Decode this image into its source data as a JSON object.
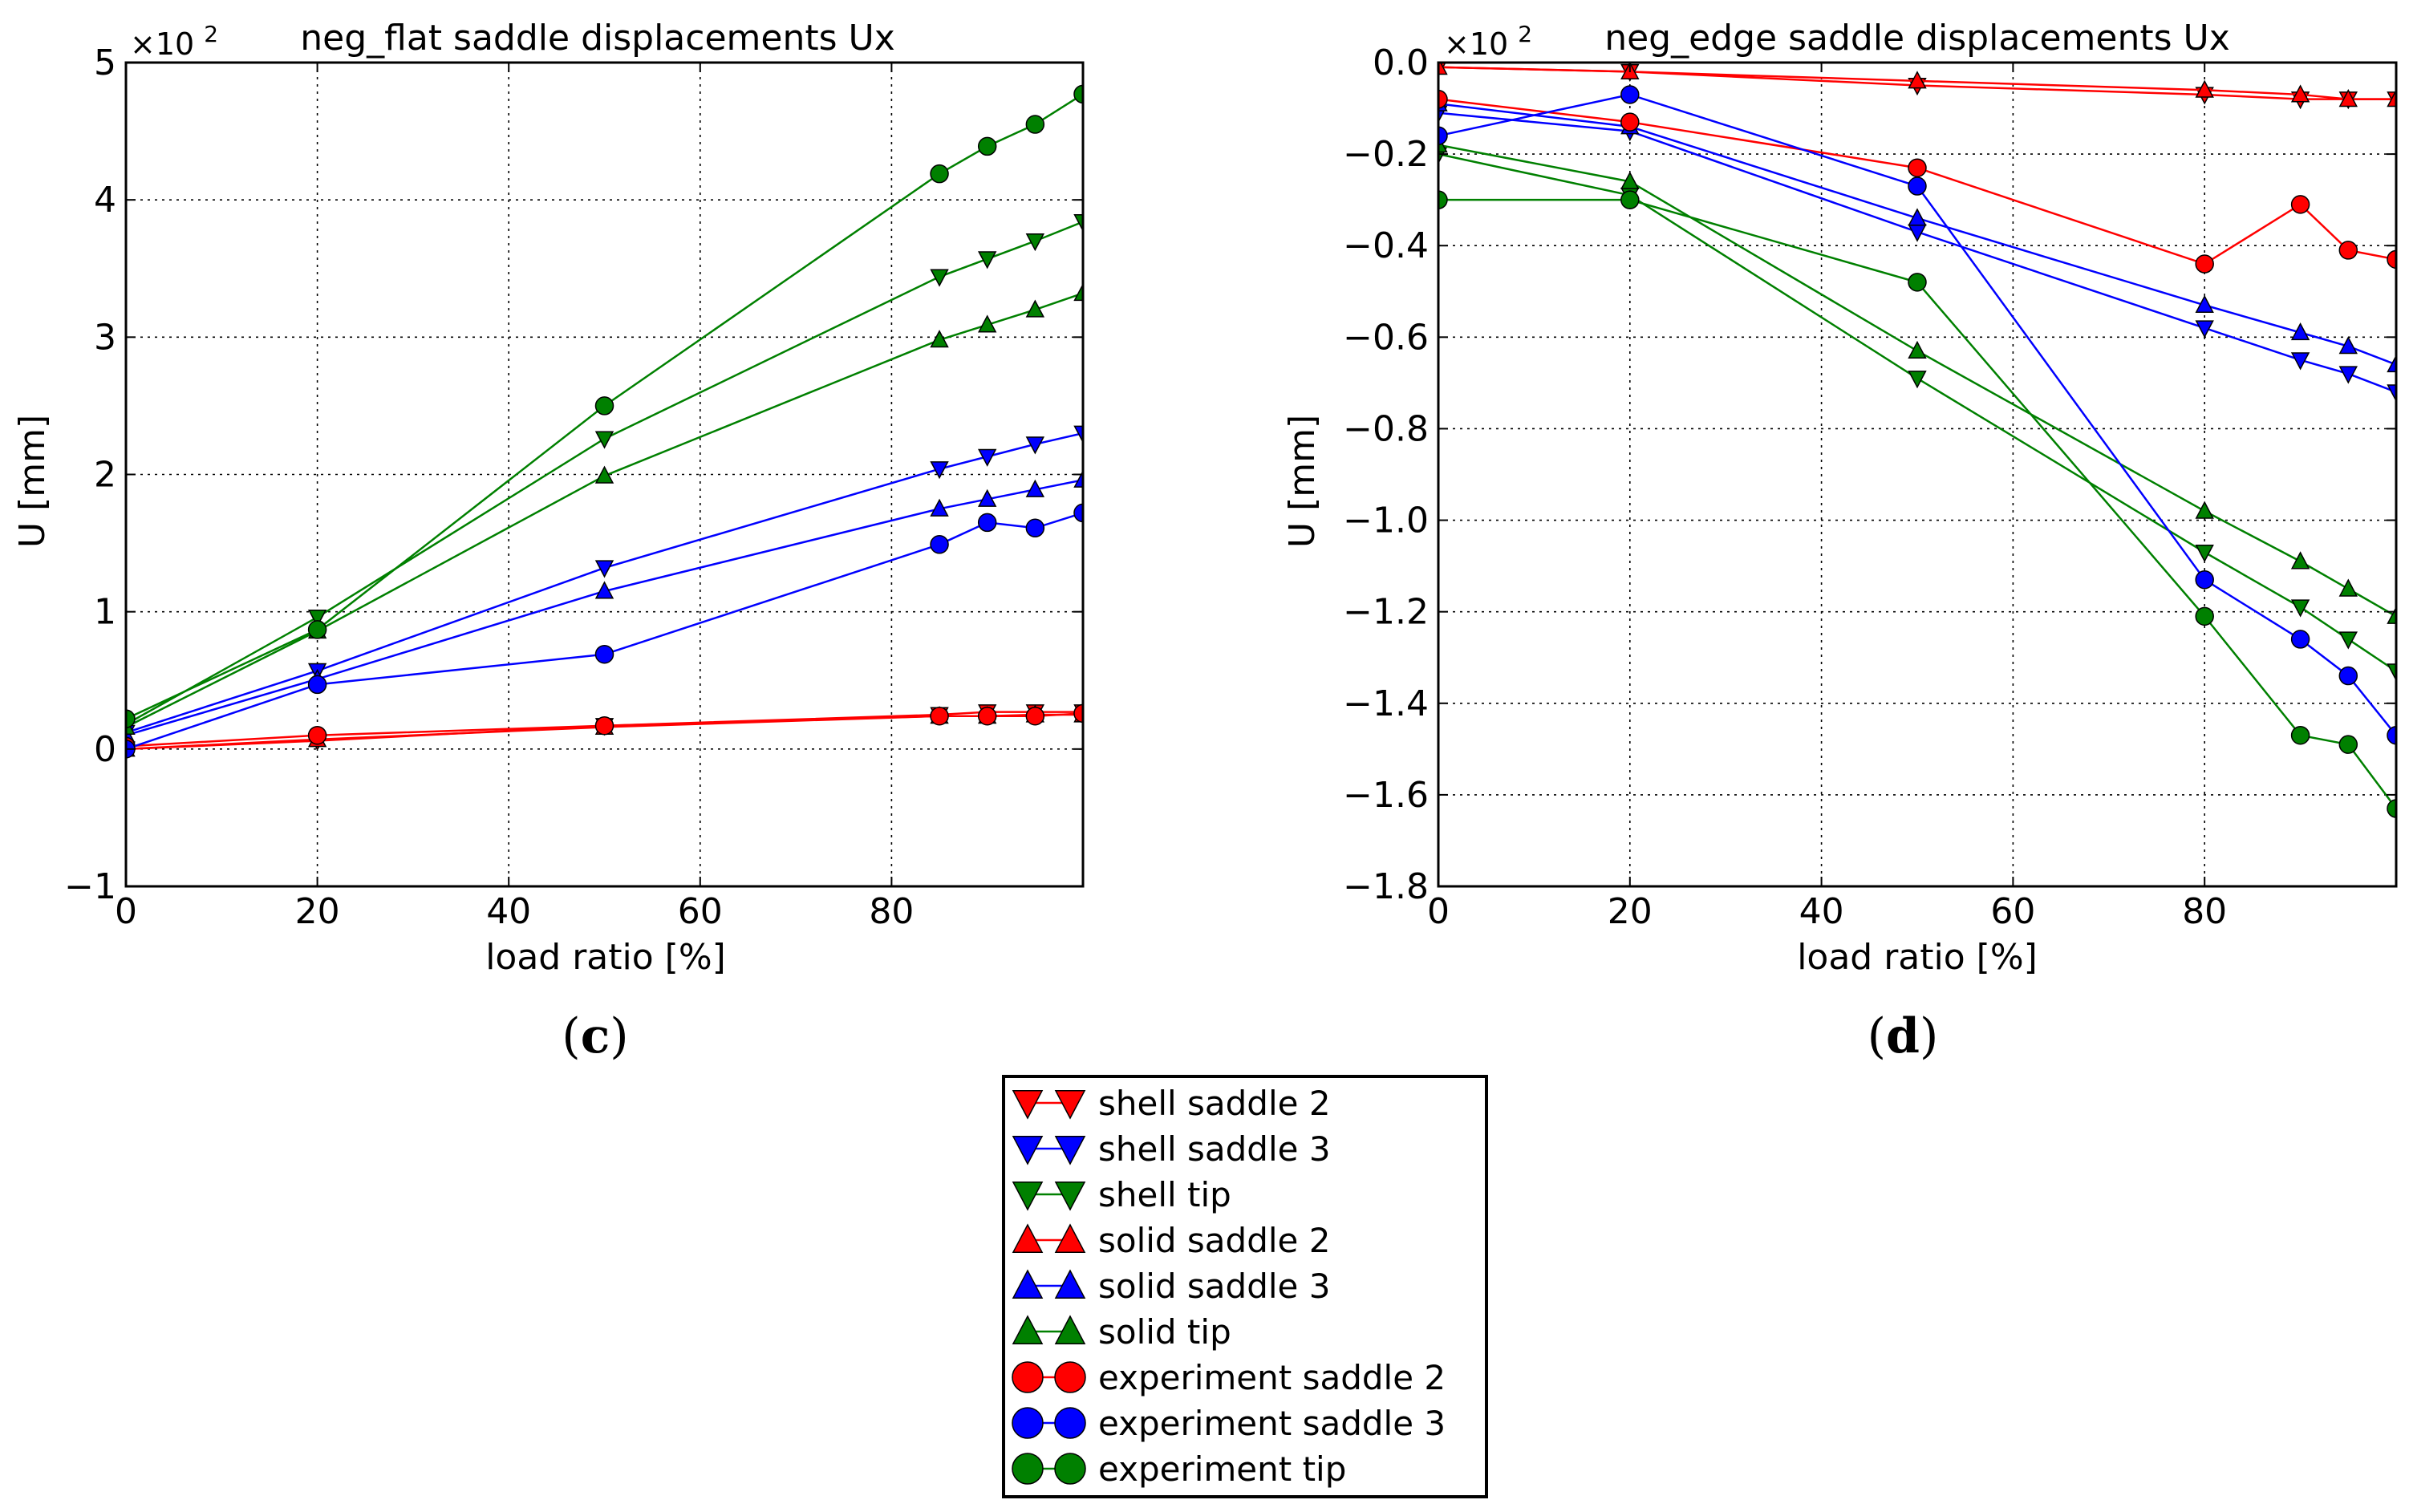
{
  "chart_data": [
    {
      "type": "line",
      "panel_label": "c",
      "title": "neg_flat saddle displacements Ux",
      "xlabel": "load ratio [%]",
      "ylabel": "U [mm]",
      "y_multiplier": "×10",
      "y_multiplier_exp": "2",
      "xlim": [
        0,
        100
      ],
      "ylim": [
        -1,
        5
      ],
      "x_ticks": [
        0,
        20,
        40,
        60,
        80
      ],
      "x_tick_labels": [
        "0",
        "20",
        "40",
        "60",
        "80"
      ],
      "y_ticks": [
        -1,
        0,
        1,
        2,
        3,
        4,
        5
      ],
      "y_tick_labels": [
        "−1",
        "0",
        "1",
        "2",
        "3",
        "4",
        "5"
      ],
      "grid": true,
      "series": [
        {
          "name": "shell saddle 2",
          "color": "#ff0000",
          "marker": "triangle-down",
          "x": [
            0,
            20,
            50,
            85,
            90,
            95,
            100
          ],
          "y": [
            0.0,
            0.06,
            0.17,
            0.25,
            0.27,
            0.27,
            0.27
          ]
        },
        {
          "name": "shell saddle 3",
          "color": "#0000ff",
          "marker": "triangle-down",
          "x": [
            0,
            20,
            50,
            85,
            90,
            95,
            100
          ],
          "y": [
            0.12,
            0.57,
            1.32,
            2.04,
            2.13,
            2.22,
            2.3
          ]
        },
        {
          "name": "shell tip",
          "color": "#008000",
          "marker": "triangle-down",
          "x": [
            0,
            20,
            50,
            85,
            90,
            95,
            100
          ],
          "y": [
            0.18,
            0.96,
            2.26,
            3.44,
            3.57,
            3.7,
            3.84
          ]
        },
        {
          "name": "solid saddle 2",
          "color": "#ff0000",
          "marker": "triangle-up",
          "x": [
            0,
            20,
            50,
            85,
            90,
            95,
            100
          ],
          "y": [
            0.0,
            0.07,
            0.16,
            0.24,
            0.24,
            0.25,
            0.25
          ]
        },
        {
          "name": "solid saddle 3",
          "color": "#0000ff",
          "marker": "triangle-up",
          "x": [
            0,
            20,
            50,
            85,
            90,
            95,
            100
          ],
          "y": [
            0.1,
            0.51,
            1.15,
            1.75,
            1.82,
            1.89,
            1.96
          ]
        },
        {
          "name": "solid tip",
          "color": "#008000",
          "marker": "triangle-up",
          "x": [
            0,
            20,
            50,
            85,
            90,
            95,
            100
          ],
          "y": [
            0.16,
            0.86,
            1.99,
            2.98,
            3.09,
            3.2,
            3.32
          ]
        },
        {
          "name": "experiment saddle 2",
          "color": "#ff0000",
          "marker": "circle",
          "x": [
            0,
            20,
            50,
            85,
            90,
            95,
            100
          ],
          "y": [
            0.02,
            0.1,
            0.17,
            0.24,
            0.24,
            0.24,
            0.26
          ]
        },
        {
          "name": "experiment saddle 3",
          "color": "#0000ff",
          "marker": "circle",
          "x": [
            0,
            20,
            50,
            85,
            90,
            95,
            100
          ],
          "y": [
            0.0,
            0.47,
            0.69,
            1.49,
            1.65,
            1.61,
            1.72
          ]
        },
        {
          "name": "experiment tip",
          "color": "#008000",
          "marker": "circle",
          "x": [
            0,
            20,
            50,
            85,
            90,
            95,
            100
          ],
          "y": [
            0.22,
            0.87,
            2.5,
            4.19,
            4.39,
            4.55,
            4.77
          ]
        }
      ]
    },
    {
      "type": "line",
      "panel_label": "d",
      "title": "neg_edge saddle displacements Ux",
      "xlabel": "load ratio [%]",
      "ylabel": "U [mm]",
      "y_multiplier": "×10",
      "y_multiplier_exp": "2",
      "xlim": [
        0,
        100
      ],
      "ylim": [
        -1.8,
        0.0
      ],
      "x_ticks": [
        0,
        20,
        40,
        60,
        80
      ],
      "x_tick_labels": [
        "0",
        "20",
        "40",
        "60",
        "80"
      ],
      "y_ticks": [
        -1.8,
        -1.6,
        -1.4,
        -1.2,
        -1.0,
        -0.8,
        -0.6,
        -0.4,
        -0.2,
        0.0
      ],
      "y_tick_labels": [
        "−1.8",
        "−1.6",
        "−1.4",
        "−1.2",
        "−1.0",
        "−0.8",
        "−0.6",
        "−0.4",
        "−0.2",
        "0.0"
      ],
      "grid": true,
      "series": [
        {
          "name": "shell saddle 2",
          "color": "#ff0000",
          "marker": "triangle-down",
          "x": [
            0,
            20,
            50,
            80,
            90,
            95,
            100
          ],
          "y": [
            -0.01,
            -0.02,
            -0.05,
            -0.07,
            -0.08,
            -0.08,
            -0.08
          ]
        },
        {
          "name": "shell saddle 3",
          "color": "#0000ff",
          "marker": "triangle-down",
          "x": [
            0,
            20,
            50,
            80,
            90,
            95,
            100
          ],
          "y": [
            -0.11,
            -0.15,
            -0.37,
            -0.58,
            -0.65,
            -0.68,
            -0.72
          ]
        },
        {
          "name": "shell tip",
          "color": "#008000",
          "marker": "triangle-down",
          "x": [
            0,
            20,
            50,
            80,
            90,
            95,
            100
          ],
          "y": [
            -0.2,
            -0.29,
            -0.69,
            -1.07,
            -1.19,
            -1.26,
            -1.33
          ]
        },
        {
          "name": "solid saddle 2",
          "color": "#ff0000",
          "marker": "triangle-up",
          "x": [
            0,
            20,
            50,
            80,
            90,
            95,
            100
          ],
          "y": [
            -0.01,
            -0.02,
            -0.04,
            -0.06,
            -0.07,
            -0.08,
            -0.08
          ]
        },
        {
          "name": "solid saddle 3",
          "color": "#0000ff",
          "marker": "triangle-up",
          "x": [
            0,
            20,
            50,
            80,
            90,
            95,
            100
          ],
          "y": [
            -0.09,
            -0.14,
            -0.34,
            -0.53,
            -0.59,
            -0.62,
            -0.66
          ]
        },
        {
          "name": "solid tip",
          "color": "#008000",
          "marker": "triangle-up",
          "x": [
            0,
            20,
            50,
            80,
            90,
            95,
            100
          ],
          "y": [
            -0.18,
            -0.26,
            -0.63,
            -0.98,
            -1.09,
            -1.15,
            -1.21
          ]
        },
        {
          "name": "experiment saddle 2",
          "color": "#ff0000",
          "marker": "circle",
          "x": [
            0,
            20,
            50,
            80,
            90,
            95,
            100
          ],
          "y": [
            -0.08,
            -0.13,
            -0.23,
            -0.44,
            -0.31,
            -0.41,
            -0.43
          ]
        },
        {
          "name": "experiment saddle 3",
          "color": "#0000ff",
          "marker": "circle",
          "x": [
            0,
            20,
            50,
            80,
            90,
            95,
            100
          ],
          "y": [
            -0.16,
            -0.07,
            -0.27,
            -1.13,
            -1.26,
            -1.34,
            -1.47
          ]
        },
        {
          "name": "experiment tip",
          "color": "#008000",
          "marker": "circle",
          "x": [
            0,
            20,
            50,
            80,
            90,
            95,
            100
          ],
          "y": [
            -0.3,
            -0.3,
            -0.48,
            -1.21,
            -1.47,
            -1.49,
            -1.63
          ]
        }
      ]
    }
  ],
  "legend": {
    "placement": "bottom-center",
    "entries": [
      {
        "label": "shell saddle 2",
        "color": "#ff0000",
        "marker": "triangle-down"
      },
      {
        "label": "shell saddle 3",
        "color": "#0000ff",
        "marker": "triangle-down"
      },
      {
        "label": "shell tip",
        "color": "#008000",
        "marker": "triangle-down"
      },
      {
        "label": "solid saddle 2",
        "color": "#ff0000",
        "marker": "triangle-up"
      },
      {
        "label": "solid saddle 3",
        "color": "#0000ff",
        "marker": "triangle-up"
      },
      {
        "label": "solid tip",
        "color": "#008000",
        "marker": "triangle-up"
      },
      {
        "label": "experiment saddle 2",
        "color": "#ff0000",
        "marker": "circle"
      },
      {
        "label": "experiment saddle 3",
        "color": "#0000ff",
        "marker": "circle"
      },
      {
        "label": "experiment tip",
        "color": "#008000",
        "marker": "circle"
      }
    ]
  }
}
